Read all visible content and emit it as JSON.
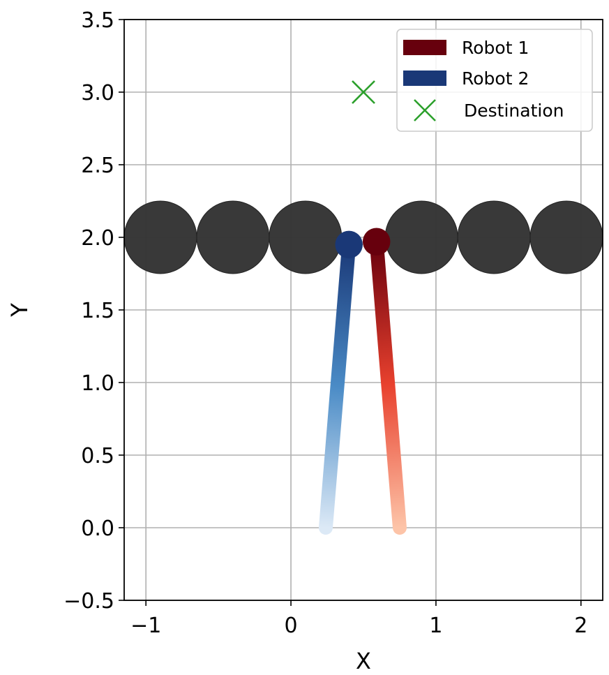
{
  "chart_data": {
    "type": "scatter",
    "title": "",
    "xlabel": "X",
    "ylabel": "Y",
    "xlim": [
      -1.15,
      2.15
    ],
    "ylim": [
      -0.5,
      3.5
    ],
    "xticks": [
      -1,
      0,
      1,
      2
    ],
    "xtick_labels": [
      "−1",
      "0",
      "1",
      "2"
    ],
    "yticks": [
      -0.5,
      0.0,
      0.5,
      1.0,
      1.5,
      2.0,
      2.5,
      3.0,
      3.5
    ],
    "ytick_labels": [
      "−0.5",
      "0.0",
      "0.5",
      "1.0",
      "1.5",
      "2.0",
      "2.5",
      "3.0",
      "3.5"
    ],
    "grid": true,
    "legend_position": "top-right",
    "obstacles": {
      "color": "#333333",
      "radius": 0.25,
      "centers": [
        [
          -0.9,
          2.0
        ],
        [
          -0.4,
          2.0
        ],
        [
          0.1,
          2.0
        ],
        [
          0.9,
          2.0
        ],
        [
          1.4,
          2.0
        ],
        [
          1.9,
          2.0
        ]
      ]
    },
    "series": [
      {
        "name": "Robot 1",
        "color": "#67000d",
        "gradient_start": "#fdc4a8",
        "gradient_mid": "#e8412e",
        "gradient_end": "#67000d",
        "path": [
          [
            0.75,
            0.0
          ],
          [
            0.59,
            1.97
          ]
        ],
        "robot_radius": 0.1
      },
      {
        "name": "Robot 2",
        "color": "#1a3877",
        "gradient_start": "#dce9f6",
        "gradient_mid": "#4a8bc6",
        "gradient_end": "#1a3877",
        "path": [
          [
            0.24,
            0.0
          ],
          [
            0.4,
            1.95
          ]
        ],
        "robot_radius": 0.1
      }
    ],
    "destination": {
      "name": "Destination",
      "x": 0.5,
      "y": 3.0,
      "color": "#2ca02c"
    }
  }
}
